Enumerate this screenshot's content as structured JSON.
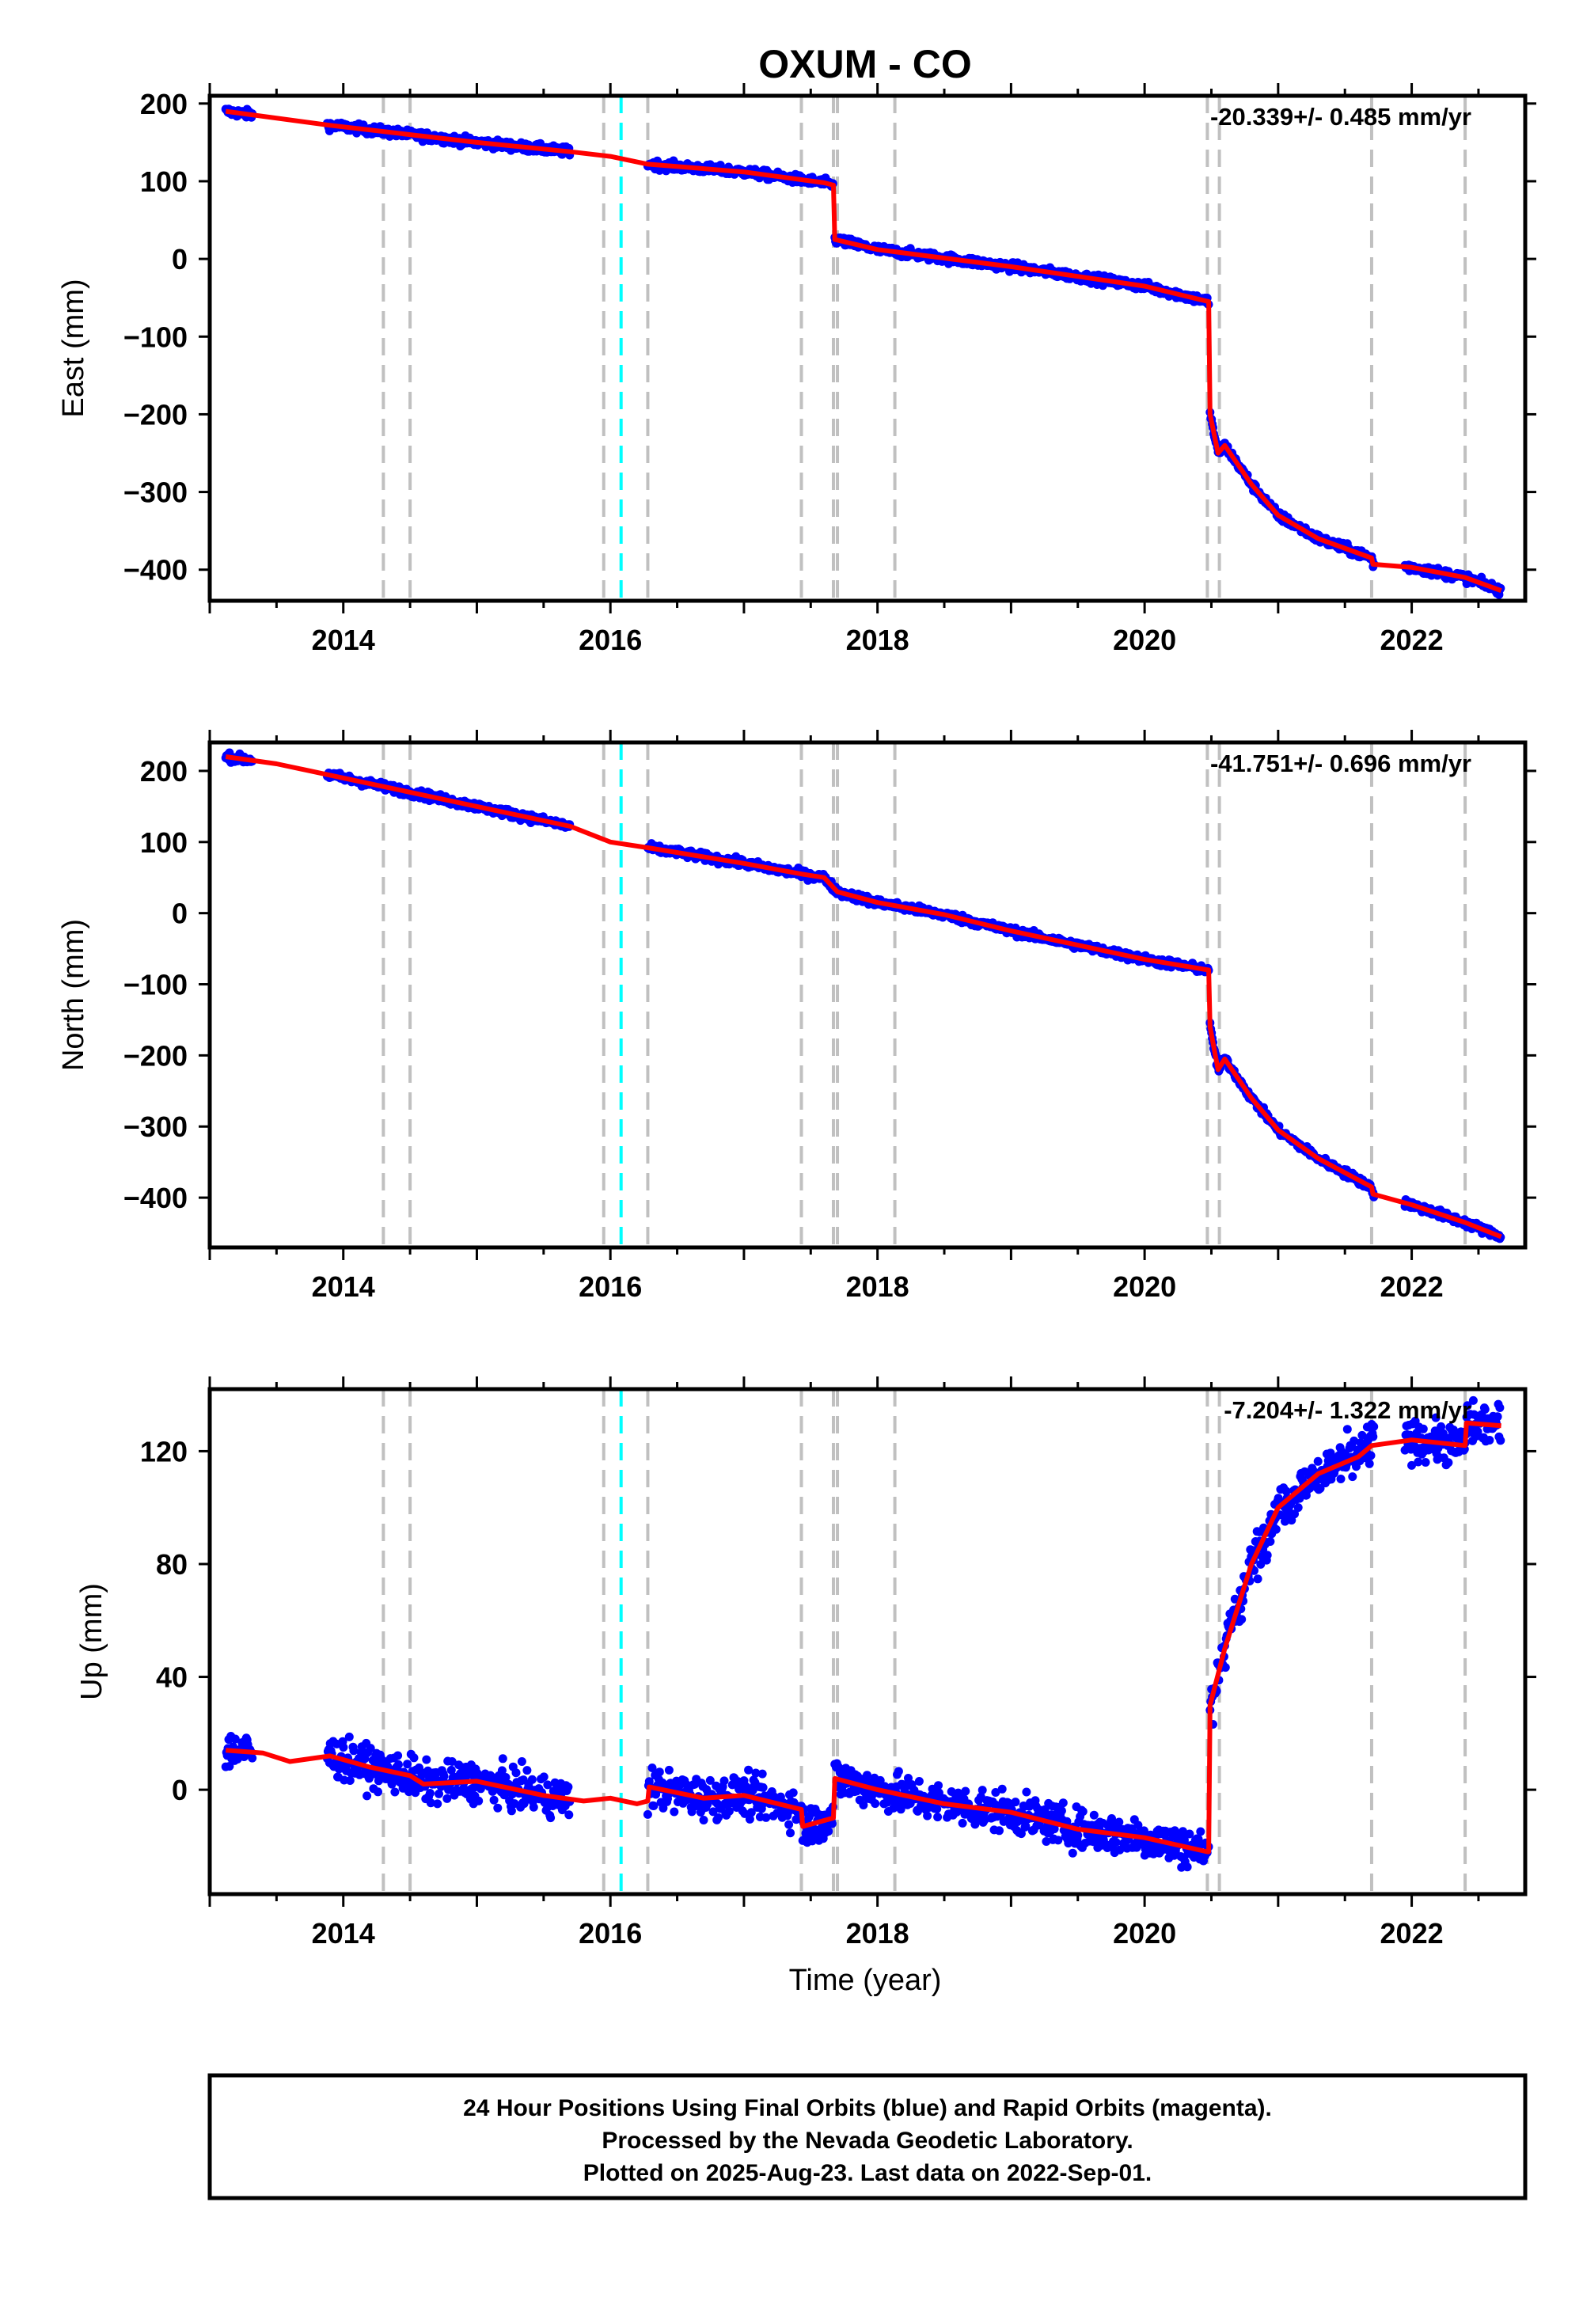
{
  "title": "OXUM - CO",
  "xlabel": "Time (year)",
  "footer": {
    "line1": "24 Hour Positions Using Final Orbits (blue) and Rapid Orbits (magenta).",
    "line2": "Processed by the Nevada Geodetic Laboratory.",
    "line3": "Plotted on 2025-Aug-23. Last data on 2022-Sep-01."
  },
  "colors": {
    "data": "#0000ff",
    "model": "#ff0000",
    "step_gray": "#c0c0c0",
    "step_cyan": "#00ffff"
  },
  "chart_data": [
    {
      "type": "scatter",
      "component": "east",
      "ylabel": "East (mm)",
      "rate_label": "-20.339+/- 0.485 mm/yr",
      "xlim": [
        2013.0,
        2022.85
      ],
      "ylim": [
        -440,
        210
      ],
      "xticks": [
        2014,
        2016,
        2018,
        2020,
        2022
      ],
      "yticks": [
        200,
        100,
        0,
        -100,
        -200,
        -300,
        -400
      ],
      "ytick_labels": [
        "200",
        "100",
        "0",
        "−100",
        "−200",
        "−300",
        "−400"
      ],
      "steps_gray": [
        2014.3,
        2014.5,
        2015.95,
        2016.28,
        2017.43,
        2017.67,
        2017.7,
        2018.13,
        2020.47,
        2020.56,
        2021.7,
        2022.4
      ],
      "steps_cyan": [
        2016.08
      ],
      "model": [
        [
          2013.12,
          190
        ],
        [
          2013.9,
          172
        ],
        [
          2014.5,
          160
        ],
        [
          2015.0,
          150
        ],
        [
          2015.7,
          138
        ],
        [
          2016.0,
          132
        ],
        [
          2016.28,
          122
        ],
        [
          2017.0,
          112
        ],
        [
          2017.6,
          98
        ],
        [
          2017.67,
          95
        ],
        [
          2017.68,
          25
        ],
        [
          2018.0,
          12
        ],
        [
          2019.0,
          -10
        ],
        [
          2020.0,
          -35
        ],
        [
          2020.48,
          -55
        ],
        [
          2020.49,
          -200
        ],
        [
          2020.55,
          -250
        ],
        [
          2020.6,
          -240
        ],
        [
          2020.8,
          -290
        ],
        [
          2021.0,
          -330
        ],
        [
          2021.3,
          -360
        ],
        [
          2021.7,
          -385
        ],
        [
          2021.71,
          -393
        ],
        [
          2022.0,
          -397
        ],
        [
          2022.4,
          -410
        ],
        [
          2022.67,
          -427
        ]
      ],
      "segments": [
        [
          2013.12,
          2013.32
        ],
        [
          2013.88,
          2015.7
        ],
        [
          2016.28,
          2017.67
        ],
        [
          2017.68,
          2020.48
        ],
        [
          2020.49,
          2021.72
        ],
        [
          2021.95,
          2022.67
        ]
      ],
      "noise": 4
    },
    {
      "type": "scatter",
      "component": "north",
      "ylabel": "North (mm)",
      "rate_label": "-41.751+/- 0.696 mm/yr",
      "xlim": [
        2013.0,
        2022.85
      ],
      "ylim": [
        -470,
        240
      ],
      "xticks": [
        2014,
        2016,
        2018,
        2020,
        2022
      ],
      "yticks": [
        200,
        100,
        0,
        -100,
        -200,
        -300,
        -400
      ],
      "ytick_labels": [
        "200",
        "100",
        "0",
        "−100",
        "−200",
        "−300",
        "−400"
      ],
      "steps_gray": [
        2014.3,
        2014.5,
        2015.95,
        2016.28,
        2017.43,
        2017.67,
        2017.7,
        2018.13,
        2020.47,
        2020.56,
        2021.7,
        2022.4
      ],
      "steps_cyan": [
        2016.08
      ],
      "model": [
        [
          2013.12,
          220
        ],
        [
          2013.5,
          210
        ],
        [
          2014.0,
          190
        ],
        [
          2014.5,
          170
        ],
        [
          2015.0,
          150
        ],
        [
          2015.7,
          122
        ],
        [
          2016.0,
          100
        ],
        [
          2016.28,
          92
        ],
        [
          2017.0,
          70
        ],
        [
          2017.43,
          55
        ],
        [
          2017.6,
          50
        ],
        [
          2017.7,
          30
        ],
        [
          2018.0,
          15
        ],
        [
          2018.5,
          -2
        ],
        [
          2019.0,
          -25
        ],
        [
          2019.5,
          -45
        ],
        [
          2020.0,
          -65
        ],
        [
          2020.48,
          -80
        ],
        [
          2020.49,
          -160
        ],
        [
          2020.55,
          -220
        ],
        [
          2020.6,
          -205
        ],
        [
          2020.8,
          -260
        ],
        [
          2021.0,
          -305
        ],
        [
          2021.3,
          -345
        ],
        [
          2021.7,
          -385
        ],
        [
          2021.71,
          -395
        ],
        [
          2022.0,
          -410
        ],
        [
          2022.4,
          -435
        ],
        [
          2022.67,
          -455
        ]
      ],
      "segments": [
        [
          2013.12,
          2013.32
        ],
        [
          2013.88,
          2015.7
        ],
        [
          2016.28,
          2017.67
        ],
        [
          2017.68,
          2020.48
        ],
        [
          2020.49,
          2021.72
        ],
        [
          2021.95,
          2022.67
        ]
      ],
      "noise": 4
    },
    {
      "type": "scatter",
      "component": "up",
      "ylabel": "Up (mm)",
      "rate_label": "-7.204+/- 1.322 mm/yr",
      "xlim": [
        2013.0,
        2022.85
      ],
      "ylim": [
        -37,
        142
      ],
      "xticks": [
        2014,
        2016,
        2018,
        2020,
        2022
      ],
      "yticks": [
        120,
        80,
        40,
        0
      ],
      "ytick_labels": [
        "120",
        "80",
        "40",
        "0"
      ],
      "steps_gray": [
        2014.3,
        2014.5,
        2015.95,
        2016.28,
        2017.43,
        2017.67,
        2017.7,
        2018.13,
        2020.47,
        2020.56,
        2021.7,
        2022.4
      ],
      "steps_cyan": [
        2016.08
      ],
      "model": [
        [
          2013.12,
          14
        ],
        [
          2013.4,
          13
        ],
        [
          2013.6,
          10
        ],
        [
          2013.9,
          12
        ],
        [
          2014.2,
          8
        ],
        [
          2014.5,
          5
        ],
        [
          2014.6,
          2
        ],
        [
          2015.0,
          3
        ],
        [
          2015.5,
          -2
        ],
        [
          2015.8,
          -4
        ],
        [
          2016.0,
          -3
        ],
        [
          2016.2,
          -5
        ],
        [
          2016.28,
          -4
        ],
        [
          2016.29,
          1
        ],
        [
          2016.7,
          -3
        ],
        [
          2017.0,
          -2
        ],
        [
          2017.43,
          -7
        ],
        [
          2017.44,
          -13
        ],
        [
          2017.67,
          -10
        ],
        [
          2017.68,
          4
        ],
        [
          2018.0,
          0
        ],
        [
          2018.5,
          -5
        ],
        [
          2019.0,
          -8
        ],
        [
          2019.5,
          -14
        ],
        [
          2020.0,
          -17
        ],
        [
          2020.47,
          -22
        ],
        [
          2020.48,
          -22
        ],
        [
          2020.49,
          30
        ],
        [
          2020.6,
          50
        ],
        [
          2020.8,
          80
        ],
        [
          2021.0,
          100
        ],
        [
          2021.3,
          112
        ],
        [
          2021.6,
          118
        ],
        [
          2021.7,
          122
        ],
        [
          2022.0,
          124
        ],
        [
          2022.4,
          122
        ],
        [
          2022.41,
          130
        ],
        [
          2022.67,
          129
        ]
      ],
      "segments": [
        [
          2013.12,
          2013.32
        ],
        [
          2013.88,
          2015.7
        ],
        [
          2016.28,
          2017.67
        ],
        [
          2017.68,
          2020.48
        ],
        [
          2020.49,
          2021.72
        ],
        [
          2021.95,
          2022.67
        ]
      ],
      "noise": 5
    }
  ]
}
